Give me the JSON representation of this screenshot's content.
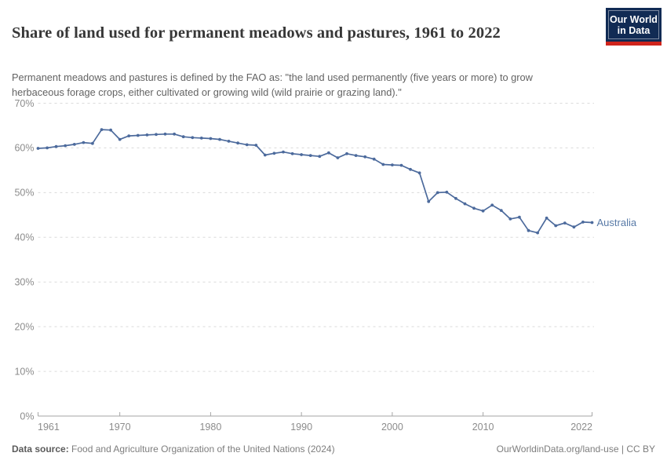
{
  "header": {
    "title": "Share of land used for permanent meadows and pastures, 1961 to 2022",
    "logo": {
      "line1": "Our World",
      "line2": "in Data"
    }
  },
  "subtitle": "Permanent meadows and pastures is defined by the FAO as: \"the land used permanently (five years or more) to grow herbaceous forage crops, either cultivated or growing wild (wild prairie or grazing land).\"",
  "chart_data": {
    "type": "line",
    "title": "Share of land used for permanent meadows and pastures, 1961 to 2022",
    "x": [
      1961,
      1962,
      1963,
      1964,
      1965,
      1966,
      1967,
      1968,
      1969,
      1970,
      1971,
      1972,
      1973,
      1974,
      1975,
      1976,
      1977,
      1978,
      1979,
      1980,
      1981,
      1982,
      1983,
      1984,
      1985,
      1986,
      1987,
      1988,
      1989,
      1990,
      1991,
      1992,
      1993,
      1994,
      1995,
      1996,
      1997,
      1998,
      1999,
      2000,
      2001,
      2002,
      2003,
      2004,
      2005,
      2006,
      2007,
      2008,
      2009,
      2010,
      2011,
      2012,
      2013,
      2014,
      2015,
      2016,
      2017,
      2018,
      2019,
      2020,
      2021,
      2022
    ],
    "series": [
      {
        "name": "Australia",
        "color": "#4c6a9c",
        "label_color": "#587aa7",
        "values": [
          59.9,
          60.0,
          60.3,
          60.5,
          60.8,
          61.2,
          61.0,
          64.1,
          64.0,
          61.9,
          62.7,
          62.8,
          62.9,
          63.0,
          63.1,
          63.1,
          62.5,
          62.3,
          62.2,
          62.1,
          61.9,
          61.5,
          61.1,
          60.7,
          60.6,
          58.4,
          58.8,
          59.1,
          58.7,
          58.5,
          58.3,
          58.1,
          58.9,
          57.8,
          58.7,
          58.3,
          58.0,
          57.5,
          56.3,
          56.2,
          56.1,
          55.2,
          54.4,
          48.0,
          50.0,
          50.1,
          48.7,
          47.5,
          46.5,
          45.9,
          47.2,
          46.0,
          44.1,
          44.5,
          41.5,
          41.0,
          44.3,
          42.6,
          43.2,
          42.3,
          43.4,
          43.3
        ]
      }
    ],
    "xlabel": "",
    "ylabel": "",
    "xlim": [
      1961,
      2022
    ],
    "ylim": [
      0,
      70
    ],
    "x_ticks": [
      1961,
      1970,
      1980,
      1990,
      2000,
      2010,
      2022
    ],
    "y_ticks": [
      0,
      10,
      20,
      30,
      40,
      50,
      60,
      70
    ],
    "y_tick_suffix": "%",
    "grid": "horizontal-dashed",
    "legend_position": "end-of-line-label"
  },
  "footer": {
    "datasource_label": "Data source:",
    "datasource_text": " Food and Agriculture Organization of the United Nations (2024)",
    "attribution_link": "OurWorldinData.org/land-use",
    "attribution_separator": " | ",
    "attribution_license": "CC BY"
  },
  "colors": {
    "line": "#4c6a9c",
    "entity_label": "#587aa7",
    "grid": "#dadada",
    "axis": "#a5a5a5",
    "tick_label": "#8c8c8c",
    "logo_bg": "#112b54",
    "logo_red": "#cf241c"
  }
}
